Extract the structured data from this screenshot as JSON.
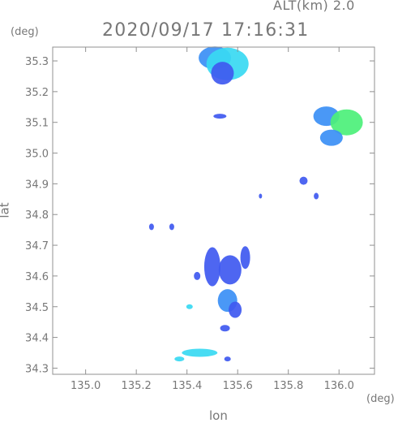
{
  "header": {
    "altitude_label": "ALT(km) 2.0",
    "timestamp": "2020/09/17 17:16:31"
  },
  "axes": {
    "y_unit": "(deg)",
    "x_unit": "(deg)",
    "xlabel": "lon",
    "ylabel": "lat"
  },
  "chart_data": {
    "type": "heatmap",
    "title": "2020/09/17 17:16:31",
    "xlabel": "lon",
    "ylabel": "lat",
    "xlim": [
      134.87,
      136.14
    ],
    "ylim": [
      34.28,
      35.345
    ],
    "x_ticks": [
      {
        "value": 135.0,
        "label": "135.0"
      },
      {
        "value": 135.2,
        "label": "135.2"
      },
      {
        "value": 135.4,
        "label": "135.4"
      },
      {
        "value": 135.6,
        "label": "135.6"
      },
      {
        "value": 135.8,
        "label": "135.8"
      },
      {
        "value": 136.0,
        "label": "136.0"
      }
    ],
    "y_ticks": [
      {
        "value": 34.3,
        "label": "34.3"
      },
      {
        "value": 34.4,
        "label": "34.4"
      },
      {
        "value": 34.5,
        "label": "34.5"
      },
      {
        "value": 34.6,
        "label": "34.6"
      },
      {
        "value": 34.7,
        "label": "34.7"
      },
      {
        "value": 34.8,
        "label": "34.8"
      },
      {
        "value": 34.9,
        "label": "34.9"
      },
      {
        "value": 35.0,
        "label": "35.0"
      },
      {
        "value": 35.1,
        "label": "35.1"
      },
      {
        "value": 35.2,
        "label": "35.2"
      },
      {
        "value": 35.3,
        "label": "35.3"
      }
    ],
    "grid": false,
    "colors": {
      "weak": "#3f59f0",
      "medium": "#3b8ff5",
      "strong": "#38d9f2",
      "peak": "#4cf07a"
    },
    "echoes": [
      {
        "lon": 135.51,
        "lat": 35.31,
        "level": "medium"
      },
      {
        "lon": 135.56,
        "lat": 35.29,
        "level": "strong"
      },
      {
        "lon": 135.54,
        "lat": 35.26,
        "level": "weak"
      },
      {
        "lon": 135.53,
        "lat": 35.12,
        "level": "weak"
      },
      {
        "lon": 135.95,
        "lat": 35.12,
        "level": "medium"
      },
      {
        "lon": 136.03,
        "lat": 35.1,
        "level": "peak"
      },
      {
        "lon": 135.97,
        "lat": 35.05,
        "level": "medium"
      },
      {
        "lon": 135.86,
        "lat": 34.91,
        "level": "weak"
      },
      {
        "lon": 135.91,
        "lat": 34.86,
        "level": "weak"
      },
      {
        "lon": 135.69,
        "lat": 34.86,
        "level": "weak"
      },
      {
        "lon": 135.26,
        "lat": 34.76,
        "level": "weak"
      },
      {
        "lon": 135.34,
        "lat": 34.76,
        "level": "weak"
      },
      {
        "lon": 135.5,
        "lat": 34.63,
        "level": "weak"
      },
      {
        "lon": 135.57,
        "lat": 34.62,
        "level": "weak"
      },
      {
        "lon": 135.63,
        "lat": 34.66,
        "level": "weak"
      },
      {
        "lon": 135.56,
        "lat": 34.52,
        "level": "medium"
      },
      {
        "lon": 135.59,
        "lat": 34.49,
        "level": "weak"
      },
      {
        "lon": 135.44,
        "lat": 34.6,
        "level": "weak"
      },
      {
        "lon": 135.41,
        "lat": 34.5,
        "level": "strong"
      },
      {
        "lon": 135.55,
        "lat": 34.43,
        "level": "weak"
      },
      {
        "lon": 135.45,
        "lat": 34.35,
        "level": "strong"
      },
      {
        "lon": 135.37,
        "lat": 34.33,
        "level": "strong"
      },
      {
        "lon": 135.56,
        "lat": 34.33,
        "level": "weak"
      }
    ]
  }
}
